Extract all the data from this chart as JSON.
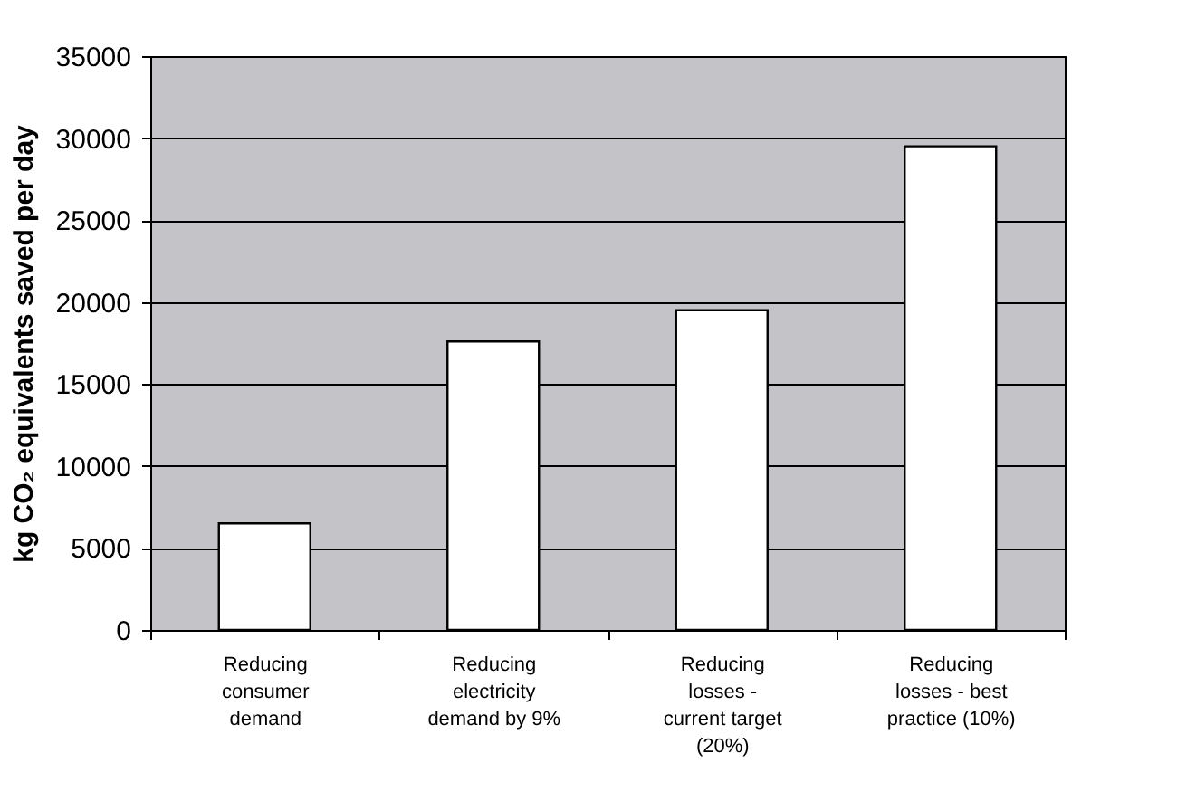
{
  "chart_data": {
    "type": "bar",
    "ylabel": "kg CO₂ equivalents saved per day",
    "categories": [
      "Reducing consumer demand",
      "Reducing electricity demand by 9%",
      "Reducing losses - current target (20%)",
      "Reducing losses - best practice (10%)"
    ],
    "values": [
      6500,
      17600,
      19500,
      29500
    ],
    "color": "#ffffff",
    "ylim": [
      0,
      35000
    ],
    "yticks": [
      0,
      5000,
      10000,
      15000,
      20000,
      25000,
      30000,
      35000
    ],
    "grid": "y"
  }
}
